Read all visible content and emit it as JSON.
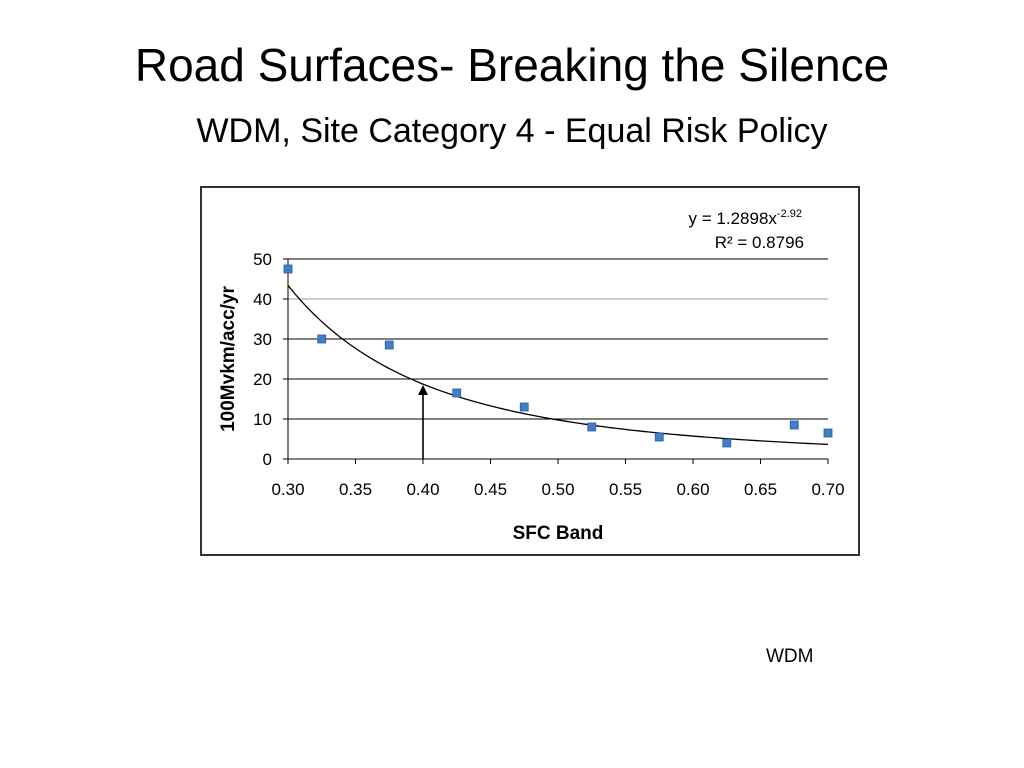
{
  "slide": {
    "title": "Road Surfaces- Breaking the Silence",
    "subtitle": "WDM, Site Category  4 -  Equal Risk Policy",
    "footer": "WDM"
  },
  "chart_data": {
    "type": "scatter",
    "title": "",
    "xlabel": "SFC Band",
    "ylabel": "100Mvkm/acc/yr",
    "xlim": [
      0.3,
      0.7
    ],
    "ylim": [
      0,
      50
    ],
    "xticks": [
      "0.30",
      "0.35",
      "0.40",
      "0.45",
      "0.50",
      "0.55",
      "0.60",
      "0.65",
      "0.70"
    ],
    "yticks": [
      "0",
      "10",
      "20",
      "30",
      "40",
      "50"
    ],
    "grid": true,
    "series": [
      {
        "x": [
          0.3,
          0.325,
          0.375,
          0.425,
          0.475,
          0.525,
          0.575,
          0.625,
          0.675,
          0.7
        ],
        "y": [
          47.5,
          30,
          28.5,
          16.5,
          13,
          8,
          5.5,
          4,
          8.5,
          6.5
        ],
        "color": "#3f7fc8"
      }
    ],
    "trendline": {
      "type": "power",
      "coefficient": 1.2898,
      "exponent": -2.92,
      "equation_prefix": "y = 1.2898x",
      "equation_exponent": "-2.92",
      "r_squared": "R² = 0.8796"
    },
    "reference_line": {
      "y": 40,
      "color": "#7fb07f"
    },
    "annotation_arrow": {
      "x": 0.4,
      "y_from": 0,
      "y_to": 18.5
    }
  }
}
